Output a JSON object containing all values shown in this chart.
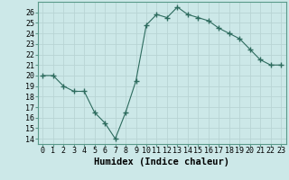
{
  "x": [
    0,
    1,
    2,
    3,
    4,
    5,
    6,
    7,
    8,
    9,
    10,
    11,
    12,
    13,
    14,
    15,
    16,
    17,
    18,
    19,
    20,
    21,
    22,
    23
  ],
  "y": [
    20,
    20,
    19,
    18.5,
    18.5,
    16.5,
    15.5,
    14,
    16.5,
    19.5,
    24.8,
    25.8,
    25.5,
    26.5,
    25.8,
    25.5,
    25.2,
    24.5,
    24,
    23.5,
    22.5,
    21.5,
    21,
    21
  ],
  "line_color": "#2d6b5e",
  "marker": "+",
  "marker_size": 4,
  "bg_color": "#cce8e8",
  "grid_color": "#b8d4d4",
  "xlabel": "Humidex (Indice chaleur)",
  "xlim": [
    -0.5,
    23.5
  ],
  "ylim": [
    13.5,
    27
  ],
  "yticks": [
    14,
    15,
    16,
    17,
    18,
    19,
    20,
    21,
    22,
    23,
    24,
    25,
    26
  ],
  "xticks": [
    0,
    1,
    2,
    3,
    4,
    5,
    6,
    7,
    8,
    9,
    10,
    11,
    12,
    13,
    14,
    15,
    16,
    17,
    18,
    19,
    20,
    21,
    22,
    23
  ],
  "xtick_labels": [
    "0",
    "1",
    "2",
    "3",
    "4",
    "5",
    "6",
    "7",
    "8",
    "9",
    "10",
    "11",
    "12",
    "13",
    "14",
    "15",
    "16",
    "17",
    "18",
    "19",
    "20",
    "21",
    "22",
    "23"
  ],
  "xlabel_fontsize": 7.5,
  "tick_fontsize": 6.0,
  "spine_color": "#5a9a8a",
  "grid_linewidth": 0.6
}
